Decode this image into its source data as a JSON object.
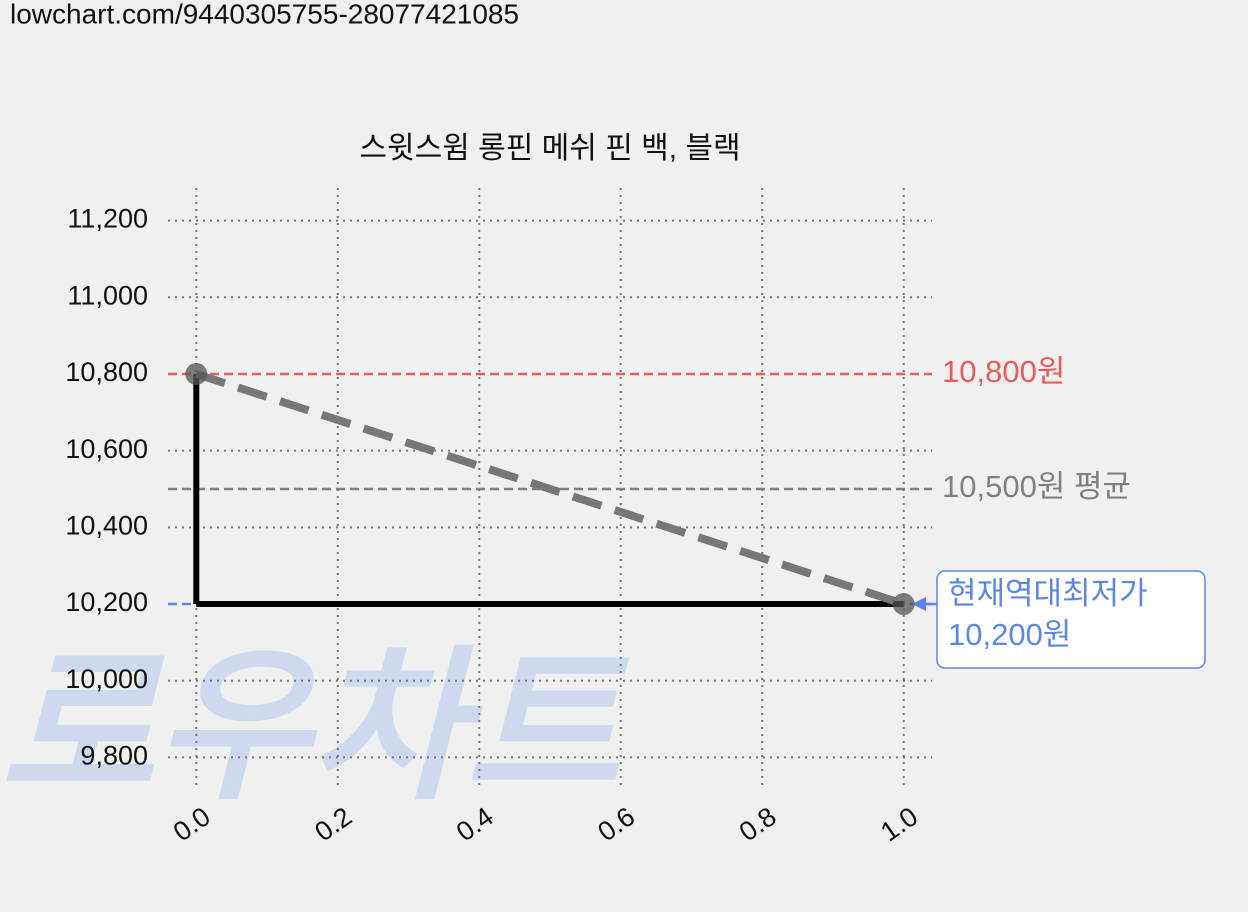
{
  "page_url": "lowchart.com/9440305755-28077421085",
  "watermark": "로우차트",
  "chart_data": {
    "type": "step",
    "title": "스윗스윔 롱핀 메쉬 핀 백, 블랙",
    "x": [
      0,
      1
    ],
    "series": [
      {
        "color": "#000000",
        "values": [
          10800,
          10200
        ]
      }
    ],
    "trend_line": {
      "color": "#777777"
    },
    "xlim": [
      -0.04,
      1.04
    ],
    "xticks": [
      {
        "value": 0,
        "label": "0.0"
      },
      0.2,
      0.4,
      0.6,
      0.8,
      {
        "value": 1,
        "label": "1.0"
      }
    ],
    "ylim": [
      9715,
      11285
    ],
    "yticks": [
      {
        "value": 9800,
        "label": "9,800"
      },
      {
        "value": 10000,
        "label": "10,000"
      },
      {
        "value": 10200,
        "label": "10,200"
      },
      {
        "value": 10400,
        "label": "10,400"
      },
      {
        "value": 10600,
        "label": "10,600"
      },
      {
        "value": 10800,
        "label": "10,800"
      },
      {
        "value": 11000,
        "label": "11,000"
      },
      {
        "value": 11200,
        "label": "11,200"
      }
    ],
    "grid": true,
    "reference_lines": [
      {
        "value": 10800,
        "label": "10,800원",
        "color": "#e85c5c"
      },
      {
        "value": 10500,
        "label": "10,500원 평균",
        "color": "#808080"
      },
      {
        "value": 10200,
        "label": "10,200원",
        "note": "현재역대최저가",
        "color": "#5b86e5"
      }
    ]
  }
}
